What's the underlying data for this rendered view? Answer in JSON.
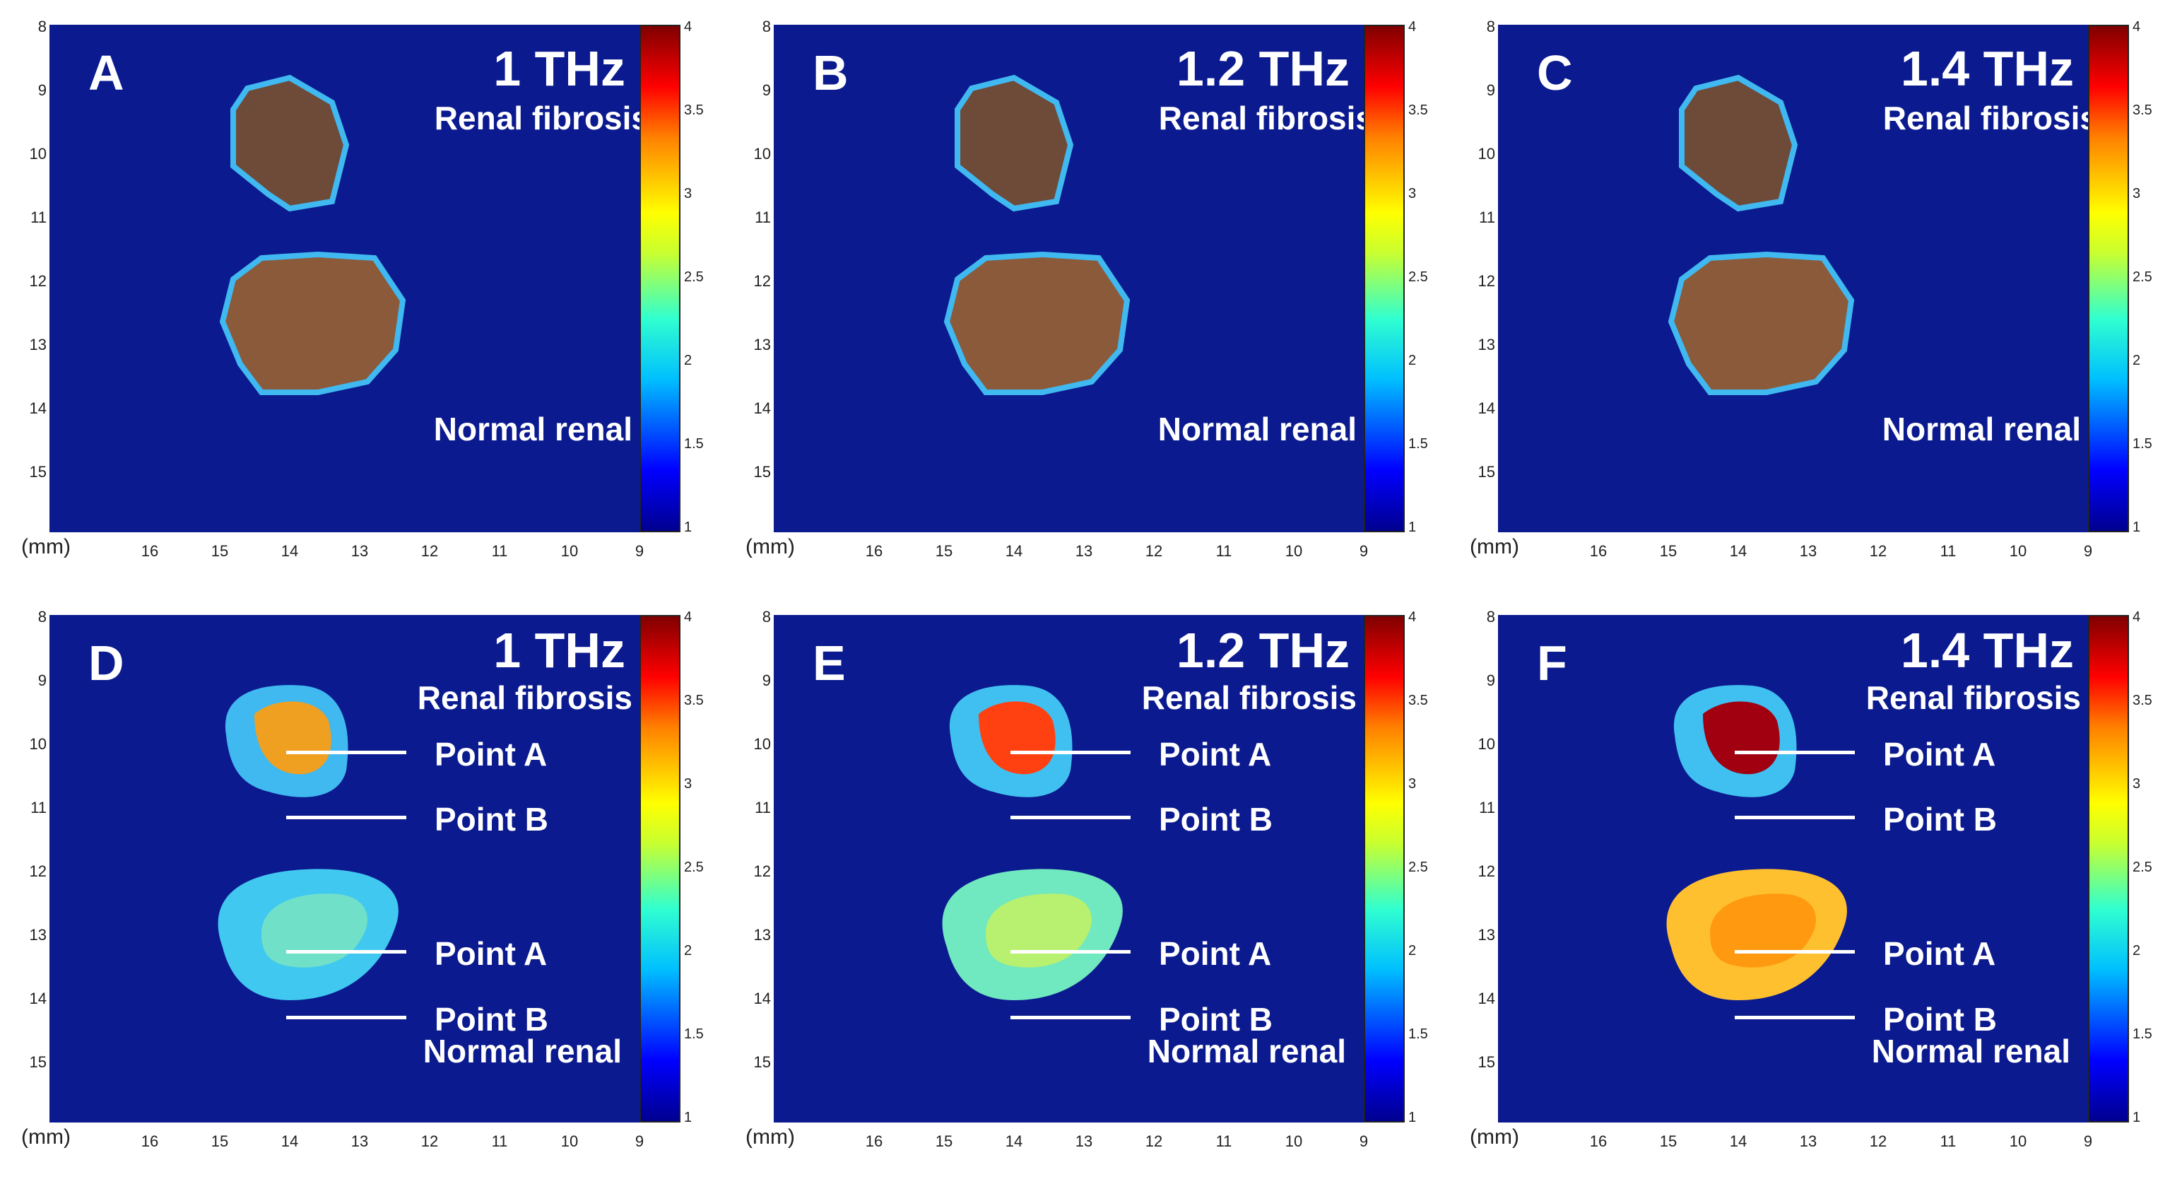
{
  "panels": [
    {
      "letter": "A",
      "freq": "1 THz",
      "top_label": "Renal fibrosis",
      "bottom_label": "Normal renal",
      "mode": "photo"
    },
    {
      "letter": "B",
      "freq": "1.2 THz",
      "top_label": "Renal fibrosis",
      "bottom_label": "Normal renal",
      "mode": "photo"
    },
    {
      "letter": "C",
      "freq": "1.4 THz",
      "top_label": "Renal fibrosis",
      "bottom_label": "Normal renal",
      "mode": "photo"
    },
    {
      "letter": "D",
      "freq": "1 THz",
      "top_label": "Renal fibrosis",
      "bottom_label": "Normal renal",
      "mode": "map",
      "points": [
        "Point A",
        "Point B",
        "Point A",
        "Point B"
      ]
    },
    {
      "letter": "E",
      "freq": "1.2 THz",
      "top_label": "Renal fibrosis",
      "bottom_label": "Normal renal",
      "mode": "map",
      "points": [
        "Point A",
        "Point B",
        "Point A",
        "Point B"
      ]
    },
    {
      "letter": "F",
      "freq": "1.4 THz",
      "top_label": "Renal fibrosis",
      "bottom_label": "Normal renal",
      "mode": "map",
      "points": [
        "Point A",
        "Point B",
        "Point A",
        "Point B"
      ]
    }
  ],
  "axis": {
    "unit": "(mm)",
    "y_ticks": [
      "8",
      "9",
      "10",
      "11",
      "12",
      "13",
      "14",
      "15"
    ],
    "x_ticks": [
      "16",
      "15",
      "14",
      "13",
      "12",
      "11",
      "10",
      "9"
    ]
  },
  "colorbar": {
    "ticks": [
      "4",
      "3.5",
      "3",
      "2.5",
      "2",
      "1.5",
      "1"
    ],
    "colors": [
      "#00008f",
      "#0000ff",
      "#00bfff",
      "#30ffd0",
      "#c8ff30",
      "#ffff00",
      "#ff8000",
      "#ff0000",
      "#800000"
    ]
  },
  "colors": {
    "background": "#0b1a8e",
    "tissue_photo": "#6e4a38",
    "fibrosis_1THz": "#f0a020",
    "fibrosis_1_2THz": "#ff4010",
    "fibrosis_1_4THz": "#a00010",
    "normal_1THz": "#40c8f0",
    "normal_1_2THz": "#70e8c0",
    "normal_1_4THz": "#ffc030"
  }
}
